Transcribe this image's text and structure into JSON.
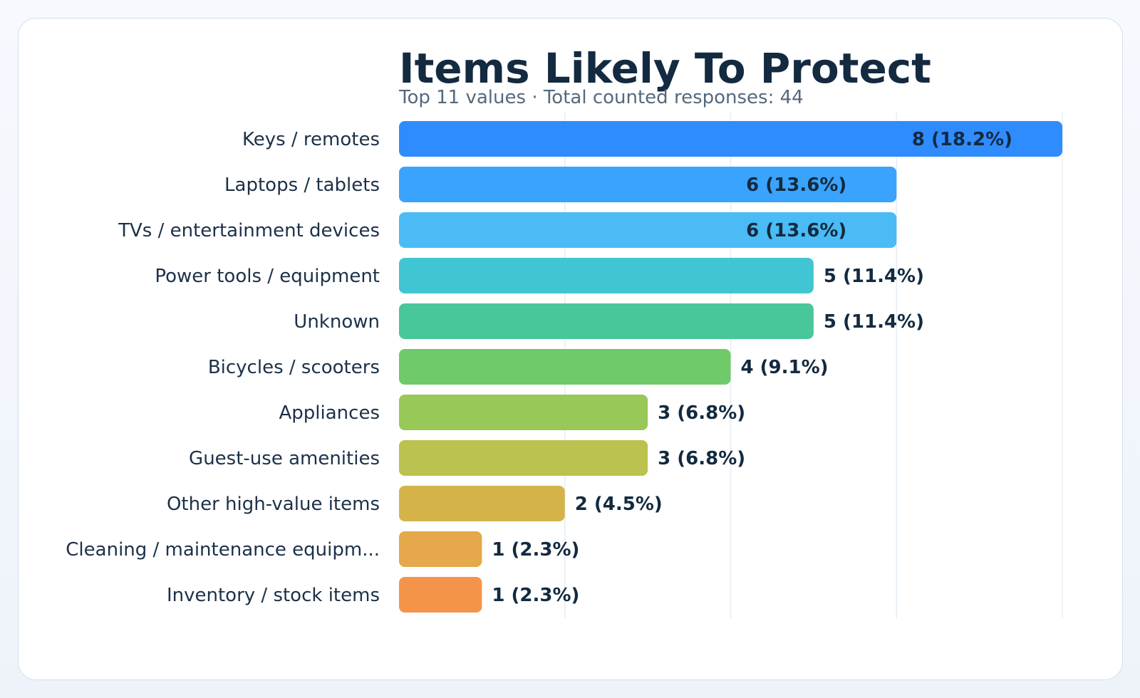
{
  "chart_data": {
    "type": "bar",
    "orientation": "horizontal",
    "title": "Items Likely To Protect",
    "subtitle": "Top 11 values · Total counted responses: 44",
    "categories": [
      "Keys / remotes",
      "Laptops / tablets",
      "TVs / entertainment devices",
      "Power tools / equipment",
      "Unknown",
      "Bicycles / scooters",
      "Appliances",
      "Guest-use amenities",
      "Other high-value items",
      "Cleaning / maintenance equipm...",
      "Inventory / stock items"
    ],
    "values": [
      8,
      6,
      6,
      5,
      5,
      4,
      3,
      3,
      2,
      1,
      1
    ],
    "data_labels": [
      "8 (18.2%)",
      "6 (13.6%)",
      "6 (13.6%)",
      "5 (11.4%)",
      "5 (11.4%)",
      "4 (9.1%)",
      "3 (6.8%)",
      "3 (6.8%)",
      "2 (4.5%)",
      "1 (2.3%)",
      "1 (2.3%)"
    ],
    "colors": [
      "#2f8cff",
      "#3aa3fd",
      "#4abbf5",
      "#42c5d2",
      "#48c798",
      "#6fca69",
      "#98c857",
      "#bbc24f",
      "#d4b44a",
      "#e5a84a",
      "#f4944a"
    ],
    "xlim": [
      0,
      8
    ],
    "grid": true,
    "xticks": [
      0,
      2,
      4,
      6,
      8
    ]
  }
}
